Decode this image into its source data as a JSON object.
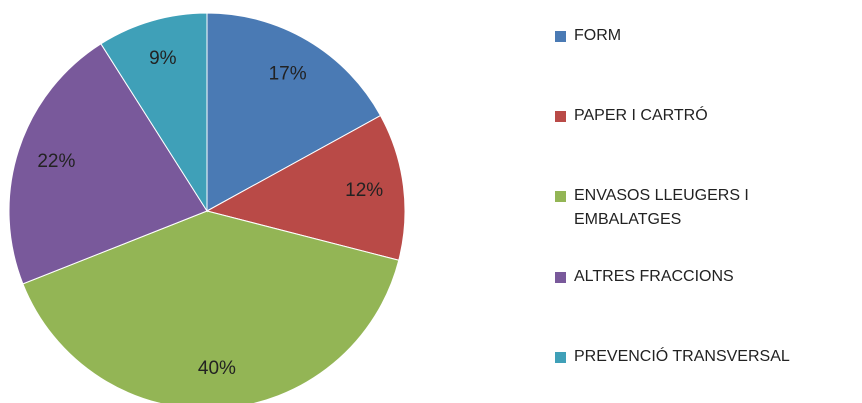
{
  "chart_data": {
    "type": "pie",
    "categories": [
      "FORM",
      "PAPER I CARTRÓ",
      "ENVASOS LLEUGERS I EMBALATGES",
      "ALTRES FRACCIONS",
      "PREVENCIÓ TRANSVERSAL"
    ],
    "values": [
      17,
      12,
      40,
      22,
      9
    ],
    "value_labels": [
      "17%",
      "12%",
      "40%",
      "22%",
      "9%"
    ],
    "colors": [
      "#4a7ab4",
      "#b94a47",
      "#93b555",
      "#79599b",
      "#3fa0b8"
    ],
    "legend": "right"
  }
}
